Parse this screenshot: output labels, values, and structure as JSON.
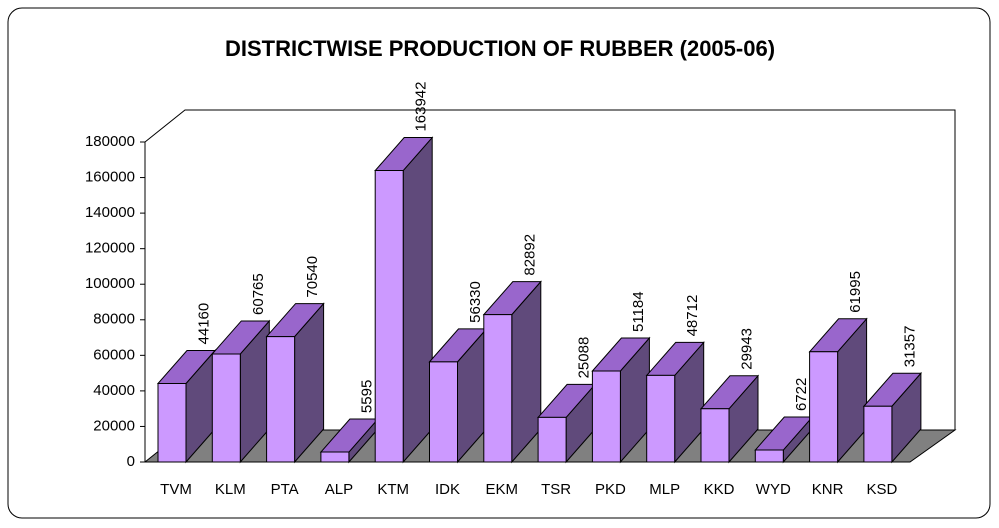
{
  "chart_data": {
    "type": "bar3d",
    "title": "DISTRICTWISE PRODUCTION OF RUBBER (2005-06)",
    "categories": [
      "TVM",
      "KLM",
      "PTA",
      "ALP",
      "KTM",
      "IDK",
      "EKM",
      "TSR",
      "PKD",
      "MLP",
      "KKD",
      "WYD",
      "KNR",
      "KSD"
    ],
    "values": [
      44160,
      60765,
      70540,
      5595,
      163942,
      56330,
      82892,
      25088,
      51184,
      48712,
      29943,
      6722,
      61995,
      31357
    ],
    "color": "#cc99ff",
    "ylim": [
      0,
      180000
    ],
    "yticks": [
      0,
      20000,
      40000,
      60000,
      80000,
      100000,
      120000,
      140000,
      160000,
      180000
    ]
  }
}
